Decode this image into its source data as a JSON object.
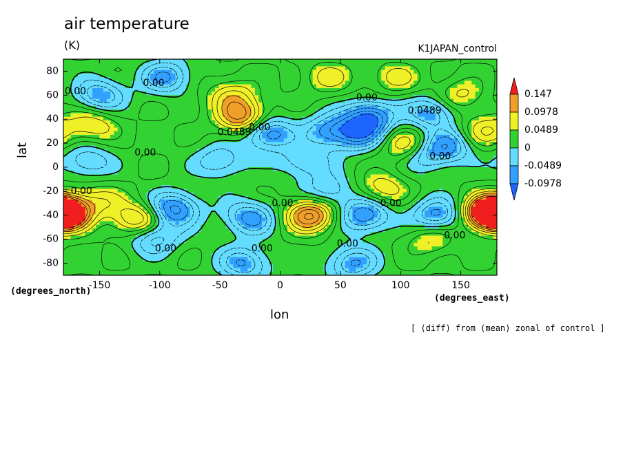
{
  "chart_data": {
    "type": "heatmap",
    "title": "air temperature",
    "units": "(K)",
    "run_label": "K1JAPAN_control",
    "xlabel": "lon",
    "ylabel": "lat",
    "x_units": "(degrees_east)",
    "y_units": "(degrees_north)",
    "note": "[ (diff) from (mean) zonal of control ]",
    "xlim": [
      -180,
      180
    ],
    "ylim": [
      -90,
      90
    ],
    "x_ticks": [
      -150,
      -100,
      -50,
      0,
      50,
      100,
      150
    ],
    "y_ticks": [
      -80,
      -60,
      -40,
      -20,
      0,
      20,
      40,
      60,
      80
    ],
    "levels": [
      -0.0978,
      -0.0489,
      0,
      0.0489,
      0.0978,
      0.147
    ],
    "level_labels": [
      "0.147",
      "0.0978",
      "0.0489",
      "0",
      "-0.0489",
      "-0.0978"
    ],
    "colors": {
      "below_-0.0978": "#1e64ff",
      "-0.0978_to_-0.0489": "#32a0ff",
      "-0.0489_to_0": "#64dcff",
      "0_to_0.0489": "#32d232",
      "0.0489_to_0.0978": "#f0f028",
      "0.0978_to_0.147": "#f0a028",
      "above_0.147": "#f01e1e"
    },
    "features": [
      {
        "lon": -180,
        "lat": -38,
        "value": 0.15
      },
      {
        "lon": 175,
        "lat": -38,
        "value": 0.16
      },
      {
        "lon": 25,
        "lat": -40,
        "value": 0.13
      },
      {
        "lon": -32,
        "lat": 42,
        "value": 0.11
      },
      {
        "lon": -118,
        "lat": -44,
        "value": 0.1
      },
      {
        "lon": -155,
        "lat": 35,
        "value": 0.06
      },
      {
        "lon": 105,
        "lat": 18,
        "value": 0.07
      },
      {
        "lon": -40,
        "lat": 60,
        "value": 0.06
      },
      {
        "lon": 95,
        "lat": 75,
        "value": 0.05
      },
      {
        "lon": 40,
        "lat": 75,
        "value": 0.05
      },
      {
        "lon": 150,
        "lat": 60,
        "value": 0.05
      },
      {
        "lon": 170,
        "lat": 30,
        "value": 0.06
      },
      {
        "lon": -150,
        "lat": -28,
        "value": 0.05
      },
      {
        "lon": 85,
        "lat": -18,
        "value": 0.06
      },
      {
        "lon": 125,
        "lat": -60,
        "value": 0.05
      },
      {
        "lon": -88,
        "lat": -35,
        "value": -0.11
      },
      {
        "lon": 75,
        "lat": 42,
        "value": -0.11
      },
      {
        "lon": 70,
        "lat": -40,
        "value": -0.1
      },
      {
        "lon": -10,
        "lat": 28,
        "value": -0.1
      },
      {
        "lon": -25,
        "lat": -42,
        "value": -0.09
      },
      {
        "lon": 130,
        "lat": -40,
        "value": -0.09
      },
      {
        "lon": 65,
        "lat": 28,
        "value": -0.09
      },
      {
        "lon": 125,
        "lat": 45,
        "value": -0.08
      },
      {
        "lon": 40,
        "lat": 30,
        "value": -0.08
      },
      {
        "lon": 140,
        "lat": 18,
        "value": -0.08
      },
      {
        "lon": -105,
        "lat": -58,
        "value": -0.08
      },
      {
        "lon": -150,
        "lat": 60,
        "value": -0.08
      },
      {
        "lon": -95,
        "lat": 75,
        "value": -0.08
      },
      {
        "lon": -30,
        "lat": -80,
        "value": -0.08
      },
      {
        "lon": 60,
        "lat": -80,
        "value": -0.08
      },
      {
        "lon": 40,
        "lat": -20,
        "value": -0.06
      },
      {
        "lon": -50,
        "lat": 5,
        "value": -0.06
      },
      {
        "lon": 20,
        "lat": 5,
        "value": -0.06
      },
      {
        "lon": -160,
        "lat": 5,
        "value": -0.06
      },
      {
        "lon": 120,
        "lat": 10,
        "value": -0.06
      }
    ],
    "contour_labels": [
      {
        "text": "0.00",
        "lon": -170,
        "lat": 63
      },
      {
        "text": "0.00",
        "lon": -105,
        "lat": 70
      },
      {
        "text": "0.0489",
        "lon": -38,
        "lat": 29
      },
      {
        "text": "0.00",
        "lon": -17,
        "lat": 33
      },
      {
        "text": "0.00",
        "lon": -112,
        "lat": 12
      },
      {
        "text": "0.00",
        "lon": -165,
        "lat": -20
      },
      {
        "text": "0.00",
        "lon": 2,
        "lat": -30
      },
      {
        "text": "0.00",
        "lon": 72,
        "lat": 58
      },
      {
        "text": "0.0489",
        "lon": 120,
        "lat": 47
      },
      {
        "text": "0.00",
        "lon": 133,
        "lat": 9
      },
      {
        "text": "0.00",
        "lon": 92,
        "lat": -30
      },
      {
        "text": "0.00",
        "lon": 145,
        "lat": -57
      },
      {
        "text": "0.00",
        "lon": 56,
        "lat": -64
      },
      {
        "text": "0.00",
        "lon": -15,
        "lat": -68
      },
      {
        "text": "0.00",
        "lon": -95,
        "lat": -68
      }
    ]
  }
}
